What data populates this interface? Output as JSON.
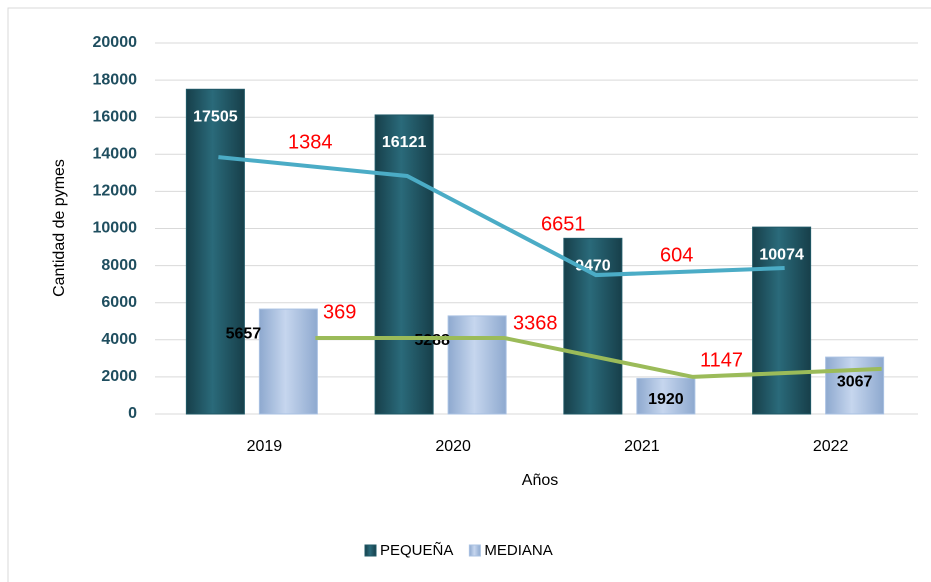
{
  "chart_data": {
    "type": "bar",
    "x_label": "Años",
    "y_label": "Cantidad de pymes",
    "categories": [
      "2019",
      "2020",
      "2021",
      "2022"
    ],
    "series": [
      {
        "name": "PEQUEÑA",
        "color": "#1f5866",
        "values": [
          17505,
          16121,
          9470,
          10074
        ]
      },
      {
        "name": "MEDIANA",
        "color": "#a9c1e2",
        "values": [
          5657,
          5288,
          1920,
          3067
        ]
      }
    ],
    "lines": [
      {
        "color": "#4bacc6",
        "values": [
          13850,
          12830,
          7490,
          7870
        ]
      },
      {
        "color": "#9bbb59",
        "values": [
          4100,
          4100,
          2000,
          2430
        ]
      }
    ],
    "annotations": [
      "1384",
      "6651",
      "604",
      "369",
      "3368",
      "1147"
    ],
    "annotation_color": "#ff0000",
    "ylim": [
      0,
      20000
    ],
    "yticks": [
      0,
      2000,
      4000,
      6000,
      8000,
      10000,
      12000,
      14000,
      16000,
      18000,
      20000
    ],
    "grid": true,
    "legend": "bottom"
  }
}
